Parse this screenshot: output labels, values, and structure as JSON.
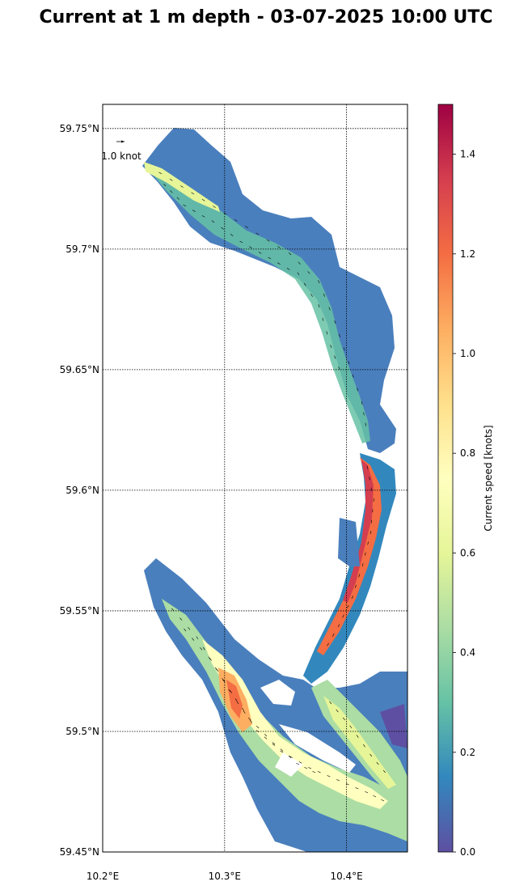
{
  "title": "Current at 1 m depth - 03-07-2025 10:00 UTC",
  "map": {
    "lat_labels": [
      "59.75°N",
      "59.7°N",
      "59.65°N",
      "59.6°N",
      "59.55°N",
      "59.5°N",
      "59.45°N"
    ],
    "lon_labels": [
      "10.2°E",
      "10.3°E",
      "10.4°E"
    ],
    "lat_values": [
      59.75,
      59.7,
      59.65,
      59.6,
      59.55,
      59.5,
      59.45
    ],
    "lon_values": [
      10.2,
      10.3,
      10.4
    ],
    "lat_range": [
      59.45,
      59.76
    ],
    "lon_range": [
      10.2,
      10.45
    ],
    "gridlines": "dotted",
    "quiver_key_label": "1.0 knot"
  },
  "colorbar": {
    "label": "Current speed [knots]",
    "tick_labels": [
      "0.0",
      "0.2",
      "0.4",
      "0.6",
      "0.8",
      "1.0",
      "1.2",
      "1.4"
    ],
    "range": [
      0.0,
      1.5
    ],
    "colormap": "Spectral_r",
    "colors": [
      "#5e4fa2",
      "#3288bd",
      "#66c2a5",
      "#abdda4",
      "#e6f598",
      "#ffffbf",
      "#fee08b",
      "#fdae61",
      "#f46d43",
      "#d53e4f",
      "#9e0142"
    ]
  }
}
